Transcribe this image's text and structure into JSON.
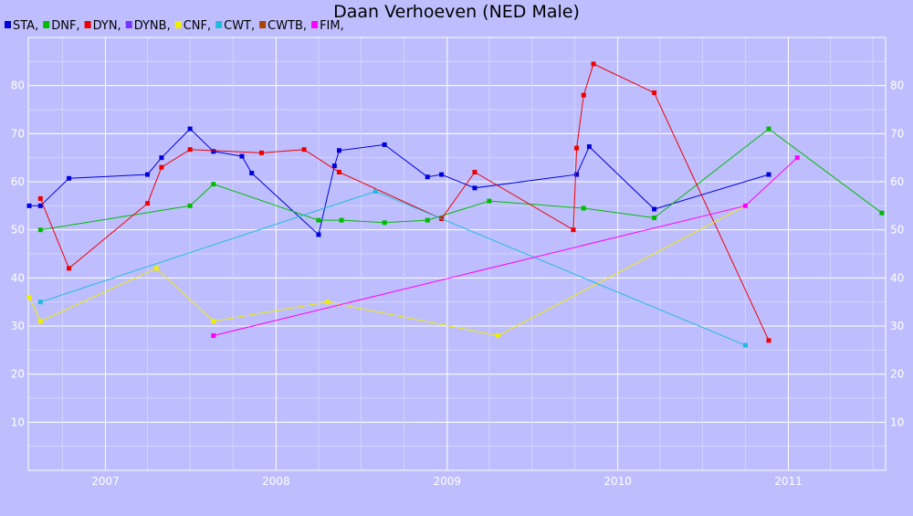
{
  "chart_data": {
    "type": "line",
    "title": "Daan Verhoeven (NED Male)",
    "xlabel": "",
    "ylabel": "",
    "xlim": [
      "2006-07-20",
      "2011-07-28"
    ],
    "ylim": [
      0,
      90
    ],
    "x_ticks": [
      {
        "date": "2007-01-01",
        "label": "2007"
      },
      {
        "date": "2008-01-01",
        "label": "2008"
      },
      {
        "date": "2009-01-01",
        "label": "2009"
      },
      {
        "date": "2010-01-01",
        "label": "2010"
      },
      {
        "date": "2011-01-01",
        "label": "2011"
      }
    ],
    "y_ticks": [
      10,
      20,
      30,
      40,
      50,
      60,
      70,
      80
    ],
    "grid": true,
    "legend_position": "top-left",
    "series": [
      {
        "name": "STA",
        "color": "#0000dd",
        "points": [
          [
            "2006-07-22",
            55
          ],
          [
            "2006-08-15",
            55
          ],
          [
            "2006-10-15",
            60.7
          ],
          [
            "2007-04-01",
            61.5
          ],
          [
            "2007-05-01",
            65
          ],
          [
            "2007-07-01",
            71
          ],
          [
            "2007-08-20",
            66.3
          ],
          [
            "2007-10-20",
            65.3
          ],
          [
            "2007-11-10",
            61.8
          ],
          [
            "2008-04-01",
            49
          ],
          [
            "2008-05-05",
            63.3
          ],
          [
            "2008-05-15",
            66.5
          ],
          [
            "2008-08-20",
            67.7
          ],
          [
            "2008-11-20",
            61
          ],
          [
            "2008-12-20",
            61.5
          ],
          [
            "2009-03-01",
            58.7
          ],
          [
            "2009-10-05",
            61.5
          ],
          [
            "2009-11-01",
            67.3
          ],
          [
            "2010-03-20",
            54.3
          ],
          [
            "2010-11-20",
            61.5
          ]
        ]
      },
      {
        "name": "DNF",
        "color": "#00bb00",
        "points": [
          [
            "2006-08-15",
            50
          ],
          [
            "2007-07-01",
            55
          ],
          [
            "2007-08-20",
            59.5
          ],
          [
            "2008-04-01",
            52
          ],
          [
            "2008-05-20",
            52
          ],
          [
            "2008-08-20",
            51.5
          ],
          [
            "2008-11-20",
            52
          ],
          [
            "2009-04-01",
            56
          ],
          [
            "2009-10-20",
            54.5
          ],
          [
            "2010-03-20",
            52.5
          ],
          [
            "2010-11-20",
            71
          ],
          [
            "2011-07-20",
            53.5
          ]
        ]
      },
      {
        "name": "DYN",
        "color": "#ee0000",
        "points": [
          [
            "2006-08-15",
            56.5
          ],
          [
            "2006-10-15",
            42
          ],
          [
            "2007-04-01",
            55.5
          ],
          [
            "2007-05-01",
            63
          ],
          [
            "2007-07-01",
            66.7
          ],
          [
            "2007-12-01",
            66
          ],
          [
            "2008-03-01",
            66.7
          ],
          [
            "2008-05-15",
            62
          ],
          [
            "2008-12-20",
            52.3
          ],
          [
            "2009-03-01",
            62
          ],
          [
            "2009-09-28",
            50
          ],
          [
            "2009-10-05",
            67
          ],
          [
            "2009-10-20",
            78
          ],
          [
            "2009-11-10",
            84.5
          ],
          [
            "2010-03-20",
            78.5
          ],
          [
            "2010-11-20",
            27
          ]
        ]
      },
      {
        "name": "DYNB",
        "color": "#7733ff",
        "points": []
      },
      {
        "name": "CNF",
        "color": "#eeee00",
        "points": [
          [
            "2006-07-22",
            36
          ],
          [
            "2006-08-15",
            31
          ],
          [
            "2007-04-20",
            42
          ],
          [
            "2007-08-20",
            31
          ],
          [
            "2008-04-20",
            35
          ],
          [
            "2009-04-20",
            28
          ],
          [
            "2010-10-01",
            55
          ]
        ]
      },
      {
        "name": "CWT",
        "color": "#22bbdd",
        "points": [
          [
            "2006-08-15",
            35
          ],
          [
            "2008-08-01",
            58
          ],
          [
            "2010-10-01",
            26
          ]
        ]
      },
      {
        "name": "CWTB",
        "color": "#aa4400",
        "points": []
      },
      {
        "name": "FIM",
        "color": "#ff00ff",
        "points": [
          [
            "2007-08-20",
            28
          ],
          [
            "2010-10-01",
            55
          ],
          [
            "2011-01-20",
            65
          ]
        ]
      }
    ]
  }
}
